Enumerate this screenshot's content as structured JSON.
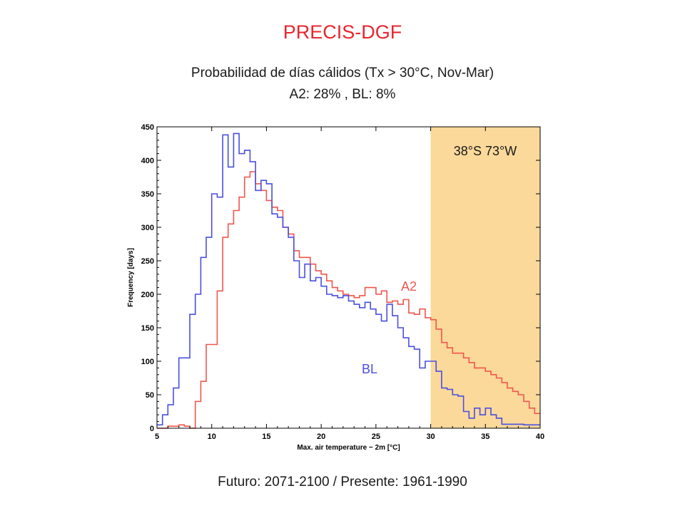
{
  "page": {
    "title": "PRECIS-DGF",
    "subtitle_line1": "Probabilidad de días cálidos (Tx > 30°C, Nov-Mar)",
    "subtitle_line2": "A2: 28% , BL: 8%",
    "footer": "Futuro: 2071-2100 / Presente: 1961-1990"
  },
  "chart_data": {
    "type": "line",
    "step": true,
    "xlabel": "Max. air temperature − 2m [°C]",
    "ylabel": "Frequency [days]",
    "xlim": [
      5,
      40
    ],
    "ylim": [
      0,
      450
    ],
    "xticks": [
      5,
      10,
      15,
      20,
      25,
      30,
      35,
      40
    ],
    "yticks": [
      0,
      50,
      100,
      150,
      200,
      250,
      300,
      350,
      400,
      450
    ],
    "location_label": "38°S 73°W",
    "shaded_region": {
      "x_from": 30,
      "x_to": 40,
      "color": "#fbd99b"
    },
    "bin_start": 5,
    "bin_width": 0.5,
    "series": [
      {
        "name": "A2",
        "color": "#f0564e",
        "values": [
          0,
          0,
          3,
          3,
          5,
          3,
          0,
          40,
          70,
          125,
          125,
          205,
          285,
          305,
          325,
          345,
          375,
          383,
          365,
          355,
          340,
          330,
          325,
          300,
          290,
          265,
          255,
          255,
          245,
          235,
          230,
          220,
          210,
          205,
          200,
          198,
          195,
          198,
          210,
          210,
          200,
          205,
          188,
          190,
          185,
          192,
          172,
          170,
          178,
          165,
          162,
          148,
          128,
          120,
          112,
          112,
          105,
          98,
          90,
          90,
          85,
          80,
          75,
          68,
          60,
          55,
          50,
          40,
          30,
          22
        ]
      },
      {
        "name": "BL",
        "color": "#4a4fe0",
        "values": [
          5,
          20,
          35,
          60,
          105,
          105,
          170,
          200,
          255,
          285,
          350,
          345,
          438,
          390,
          440,
          410,
          415,
          398,
          355,
          370,
          365,
          320,
          315,
          300,
          285,
          250,
          225,
          245,
          220,
          225,
          212,
          200,
          198,
          195,
          198,
          190,
          185,
          180,
          188,
          178,
          170,
          160,
          185,
          168,
          150,
          135,
          122,
          118,
          90,
          100,
          100,
          85,
          60,
          58,
          50,
          48,
          25,
          15,
          30,
          20,
          30,
          20,
          15,
          6,
          6,
          6,
          6,
          5,
          5,
          5
        ]
      }
    ]
  }
}
